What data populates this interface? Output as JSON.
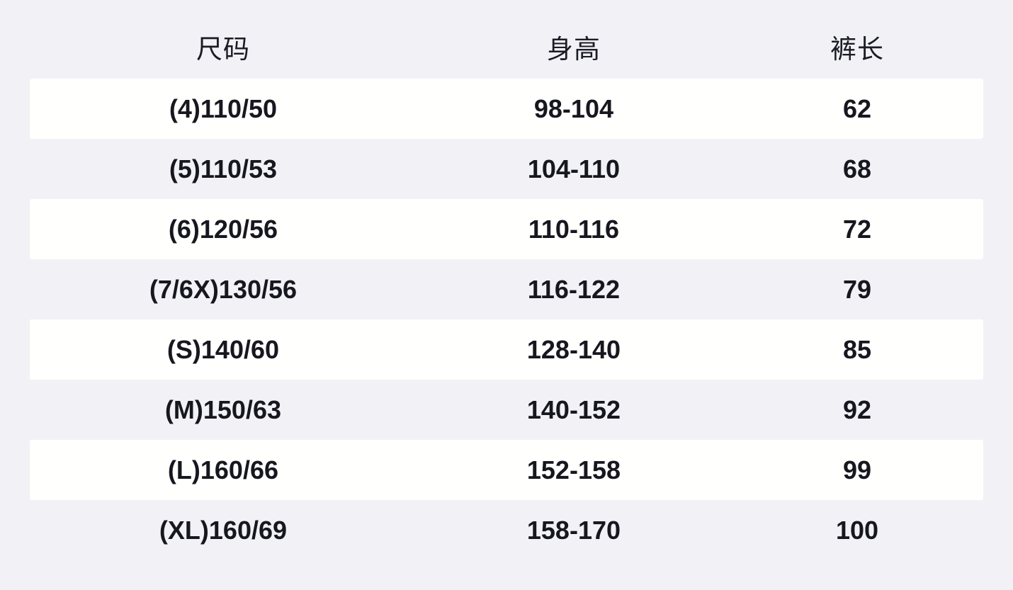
{
  "chart_data": {
    "type": "table",
    "title": "",
    "columns": [
      "尺码",
      "身高",
      "裤长"
    ],
    "rows": [
      [
        "(4)110/50",
        "98-104",
        "62"
      ],
      [
        "(5)110/53",
        "104-110",
        "68"
      ],
      [
        "(6)120/56",
        "110-116",
        "72"
      ],
      [
        "(7/6X)130/56",
        "116-122",
        "79"
      ],
      [
        "(S)140/60",
        "128-140",
        "85"
      ],
      [
        "(M)150/63",
        "140-152",
        "92"
      ],
      [
        "(L)160/66",
        "152-158",
        "99"
      ],
      [
        "(XL)160/69",
        "158-170",
        "100"
      ]
    ],
    "layout": {
      "row_striping": "alternating white bands on gray background",
      "text_align": "center"
    }
  },
  "colors": {
    "background": "#f2f2f6",
    "row_band": "#fffffe",
    "header_text": "#1c1c26",
    "body_text": "#17171f"
  }
}
